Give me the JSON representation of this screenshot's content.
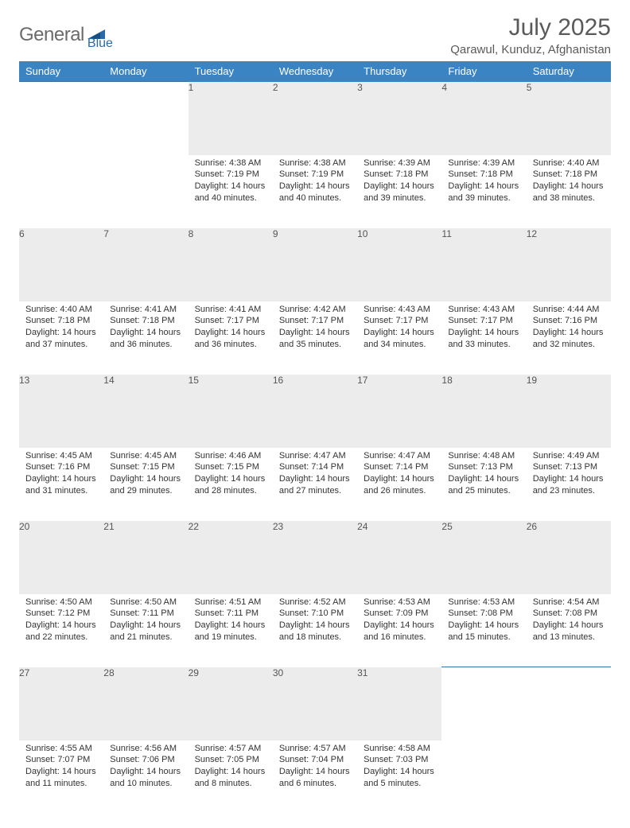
{
  "brand": {
    "name_part1": "General",
    "name_part2": "Blue",
    "color_gray": "#6b6b6b",
    "color_blue": "#2b6aa8"
  },
  "title": "July 2025",
  "location": "Qarawul, Kunduz, Afghanistan",
  "colors": {
    "header_bg": "#3b84c4",
    "header_text": "#ffffff",
    "daynum_bg": "#ececec",
    "daynum_text": "#555555",
    "cell_text": "#333333",
    "rule": "#3b6ea0"
  },
  "weekdays": [
    "Sunday",
    "Monday",
    "Tuesday",
    "Wednesday",
    "Thursday",
    "Friday",
    "Saturday"
  ],
  "weeks": [
    [
      null,
      null,
      {
        "n": "1",
        "sr": "4:38 AM",
        "ss": "7:19 PM",
        "dl": "14 hours and 40 minutes."
      },
      {
        "n": "2",
        "sr": "4:38 AM",
        "ss": "7:19 PM",
        "dl": "14 hours and 40 minutes."
      },
      {
        "n": "3",
        "sr": "4:39 AM",
        "ss": "7:18 PM",
        "dl": "14 hours and 39 minutes."
      },
      {
        "n": "4",
        "sr": "4:39 AM",
        "ss": "7:18 PM",
        "dl": "14 hours and 39 minutes."
      },
      {
        "n": "5",
        "sr": "4:40 AM",
        "ss": "7:18 PM",
        "dl": "14 hours and 38 minutes."
      }
    ],
    [
      {
        "n": "6",
        "sr": "4:40 AM",
        "ss": "7:18 PM",
        "dl": "14 hours and 37 minutes."
      },
      {
        "n": "7",
        "sr": "4:41 AM",
        "ss": "7:18 PM",
        "dl": "14 hours and 36 minutes."
      },
      {
        "n": "8",
        "sr": "4:41 AM",
        "ss": "7:17 PM",
        "dl": "14 hours and 36 minutes."
      },
      {
        "n": "9",
        "sr": "4:42 AM",
        "ss": "7:17 PM",
        "dl": "14 hours and 35 minutes."
      },
      {
        "n": "10",
        "sr": "4:43 AM",
        "ss": "7:17 PM",
        "dl": "14 hours and 34 minutes."
      },
      {
        "n": "11",
        "sr": "4:43 AM",
        "ss": "7:17 PM",
        "dl": "14 hours and 33 minutes."
      },
      {
        "n": "12",
        "sr": "4:44 AM",
        "ss": "7:16 PM",
        "dl": "14 hours and 32 minutes."
      }
    ],
    [
      {
        "n": "13",
        "sr": "4:45 AM",
        "ss": "7:16 PM",
        "dl": "14 hours and 31 minutes."
      },
      {
        "n": "14",
        "sr": "4:45 AM",
        "ss": "7:15 PM",
        "dl": "14 hours and 29 minutes."
      },
      {
        "n": "15",
        "sr": "4:46 AM",
        "ss": "7:15 PM",
        "dl": "14 hours and 28 minutes."
      },
      {
        "n": "16",
        "sr": "4:47 AM",
        "ss": "7:14 PM",
        "dl": "14 hours and 27 minutes."
      },
      {
        "n": "17",
        "sr": "4:47 AM",
        "ss": "7:14 PM",
        "dl": "14 hours and 26 minutes."
      },
      {
        "n": "18",
        "sr": "4:48 AM",
        "ss": "7:13 PM",
        "dl": "14 hours and 25 minutes."
      },
      {
        "n": "19",
        "sr": "4:49 AM",
        "ss": "7:13 PM",
        "dl": "14 hours and 23 minutes."
      }
    ],
    [
      {
        "n": "20",
        "sr": "4:50 AM",
        "ss": "7:12 PM",
        "dl": "14 hours and 22 minutes."
      },
      {
        "n": "21",
        "sr": "4:50 AM",
        "ss": "7:11 PM",
        "dl": "14 hours and 21 minutes."
      },
      {
        "n": "22",
        "sr": "4:51 AM",
        "ss": "7:11 PM",
        "dl": "14 hours and 19 minutes."
      },
      {
        "n": "23",
        "sr": "4:52 AM",
        "ss": "7:10 PM",
        "dl": "14 hours and 18 minutes."
      },
      {
        "n": "24",
        "sr": "4:53 AM",
        "ss": "7:09 PM",
        "dl": "14 hours and 16 minutes."
      },
      {
        "n": "25",
        "sr": "4:53 AM",
        "ss": "7:08 PM",
        "dl": "14 hours and 15 minutes."
      },
      {
        "n": "26",
        "sr": "4:54 AM",
        "ss": "7:08 PM",
        "dl": "14 hours and 13 minutes."
      }
    ],
    [
      {
        "n": "27",
        "sr": "4:55 AM",
        "ss": "7:07 PM",
        "dl": "14 hours and 11 minutes."
      },
      {
        "n": "28",
        "sr": "4:56 AM",
        "ss": "7:06 PM",
        "dl": "14 hours and 10 minutes."
      },
      {
        "n": "29",
        "sr": "4:57 AM",
        "ss": "7:05 PM",
        "dl": "14 hours and 8 minutes."
      },
      {
        "n": "30",
        "sr": "4:57 AM",
        "ss": "7:04 PM",
        "dl": "14 hours and 6 minutes."
      },
      {
        "n": "31",
        "sr": "4:58 AM",
        "ss": "7:03 PM",
        "dl": "14 hours and 5 minutes."
      },
      null,
      null
    ]
  ],
  "labels": {
    "sunrise": "Sunrise:",
    "sunset": "Sunset:",
    "daylight": "Daylight:"
  }
}
